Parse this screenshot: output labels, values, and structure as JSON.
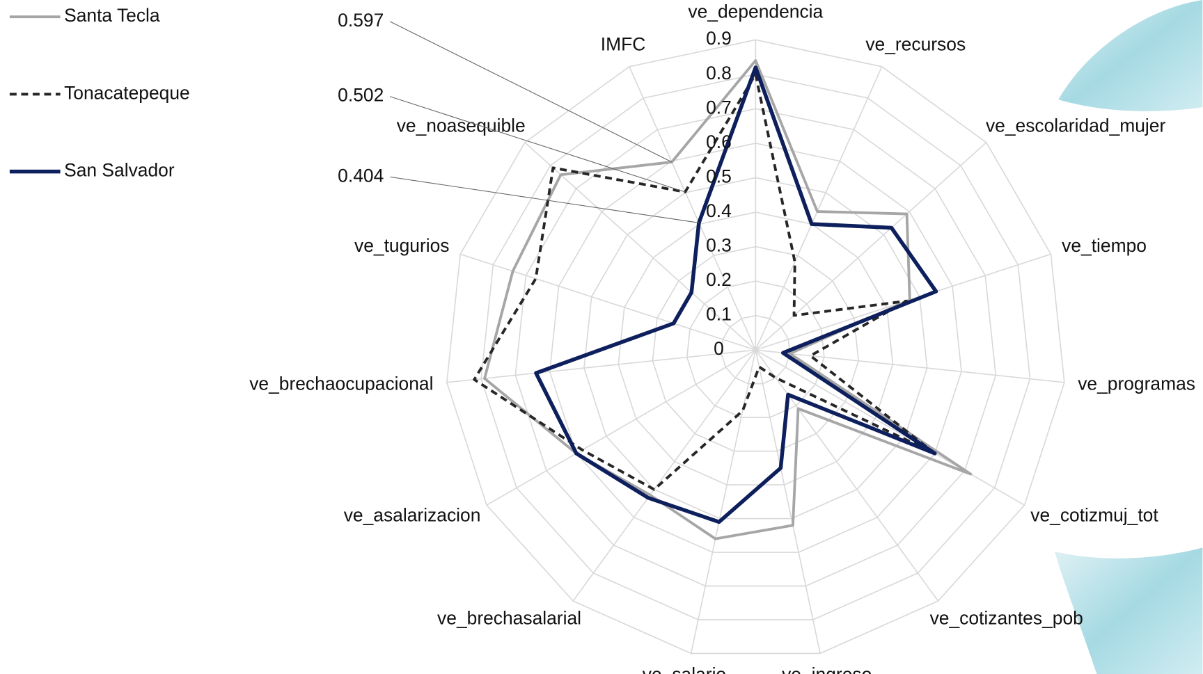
{
  "chart_data": {
    "type": "radar",
    "categories": [
      "ve_dependencia",
      "ve_recursos",
      "ve_escolaridad_mujer",
      "ve_tiempo",
      "ve_programas",
      "ve_cotizmuj_tot",
      "ve_cotizantes_pob",
      "ve_ingreso",
      "ve_salario",
      "ve_brechasalarial",
      "ve_asalarizacion",
      "ve_brechaocupacional",
      "ve_tugurios",
      "ve_noasequible",
      "IMFC"
    ],
    "series": [
      {
        "name": "Santa Tecla",
        "color": "#a6a6a6",
        "dash": "solid",
        "values": [
          0.84,
          0.44,
          0.59,
          0.47,
          0.1,
          0.72,
          0.21,
          0.52,
          0.56,
          0.52,
          0.6,
          0.79,
          0.74,
          0.76,
          0.597
        ]
      },
      {
        "name": "Tonacatepeque",
        "color": "#262626",
        "dash": "dashed",
        "values": [
          0.8,
          0.28,
          0.15,
          0.46,
          0.16,
          0.6,
          0.1,
          0.05,
          0.18,
          0.5,
          0.58,
          0.82,
          0.67,
          0.79,
          0.502
        ]
      },
      {
        "name": "San Salvador",
        "color": "#0d1f5c",
        "dash": "solid",
        "values": [
          0.82,
          0.4,
          0.53,
          0.55,
          0.08,
          0.6,
          0.16,
          0.35,
          0.51,
          0.53,
          0.6,
          0.64,
          0.25,
          0.25,
          0.404
        ]
      }
    ],
    "rlim": [
      0,
      0.9
    ],
    "rticks": [
      0,
      0.1,
      0.2,
      0.3,
      0.4,
      0.5,
      0.6,
      0.7,
      0.8,
      0.9
    ],
    "grid": true,
    "legend": "top-left"
  }
}
